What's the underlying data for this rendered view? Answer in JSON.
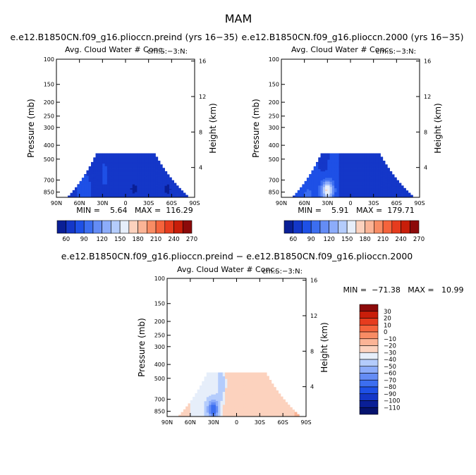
{
  "figure_title": "MAM",
  "chart_data": [
    {
      "type": "heatmap",
      "title": "e.e12.B1850CN.f09_g16.plioccn.preind (yrs 16−35)",
      "subtitle": "Avg. Cloud Water # Conc.",
      "units": "cm:S:−3:N:",
      "ylabel": "Pressure (mb)",
      "ylabel_right": "Height (km)",
      "x_ticks": [
        "90N",
        "60N",
        "30N",
        "0",
        "30S",
        "60S",
        "90S"
      ],
      "y_ticks": [
        "100",
        "150",
        "200",
        "250",
        "300",
        "400",
        "500",
        "700",
        "850"
      ],
      "y_ticks_right": [
        "16",
        "12",
        "8",
        "4"
      ],
      "xlim": [
        90,
        -90
      ],
      "ylim": [
        1000,
        100
      ],
      "y_scale": "log",
      "stats": "MIN =    5.64   MAX =  116.29",
      "min": 5.64,
      "max": 116.29,
      "colorbar_labels": [
        "60",
        "90",
        "120",
        "150",
        "180",
        "210",
        "240",
        "270"
      ]
    },
    {
      "type": "heatmap",
      "title": "e.e12.B1850CN.f09_g16.plioccn.2000 (yrs 16−35)",
      "subtitle": "Avg. Cloud Water # Conc.",
      "units": "cm:S:−3:N:",
      "ylabel": "Pressure (mb)",
      "ylabel_right": "Height (km)",
      "x_ticks": [
        "90N",
        "60N",
        "30N",
        "0",
        "30S",
        "60S",
        "90S"
      ],
      "y_ticks": [
        "100",
        "150",
        "200",
        "250",
        "300",
        "400",
        "500",
        "700",
        "850"
      ],
      "y_ticks_right": [
        "16",
        "12",
        "8",
        "4"
      ],
      "xlim": [
        90,
        -90
      ],
      "ylim": [
        1000,
        100
      ],
      "y_scale": "log",
      "stats": "MIN =    5.91   MAX =  179.71",
      "min": 5.91,
      "max": 179.71,
      "colorbar_labels": [
        "60",
        "90",
        "120",
        "150",
        "180",
        "210",
        "240",
        "270"
      ]
    },
    {
      "type": "heatmap",
      "title": "e.e12.B1850CN.f09_g16.plioccn.preind − e.e12.B1850CN.f09_g16.plioccn.2000",
      "subtitle": "Avg. Cloud Water # Conc.",
      "units": "cm:S:−3:N:",
      "ylabel": "Pressure (mb)",
      "ylabel_right": "Height (km)",
      "x_ticks": [
        "90N",
        "60N",
        "30N",
        "0",
        "30S",
        "60S",
        "90S"
      ],
      "y_ticks": [
        "100",
        "150",
        "200",
        "250",
        "300",
        "400",
        "500",
        "700",
        "850"
      ],
      "y_ticks_right": [
        "16",
        "12",
        "8",
        "4"
      ],
      "xlim": [
        90,
        -90
      ],
      "ylim": [
        1000,
        100
      ],
      "y_scale": "log",
      "stats": "MIN =  −71.38   MAX =   10.99",
      "min": -71.38,
      "max": 10.99,
      "colorbar_labels": [
        "30",
        "20",
        "10",
        "0",
        "−10",
        "−20",
        "−30",
        "−40",
        "−50",
        "−60",
        "−70",
        "−80",
        "−90",
        "−100",
        "−110"
      ]
    }
  ],
  "colors": {
    "abs_scale": [
      "#0a1f96",
      "#1437c8",
      "#1e50e6",
      "#3c6ef0",
      "#648cf5",
      "#8cacfa",
      "#b4ccfc",
      "#e6eefa",
      "#fcd2be",
      "#fbb496",
      "#f88c64",
      "#f5643c",
      "#e63c1e",
      "#c81e0a",
      "#8c0a0a"
    ],
    "diff_scale": [
      "#8c0a0a",
      "#c81e0a",
      "#e63c1e",
      "#f5643c",
      "#f88c64",
      "#fbb496",
      "#fcd2be",
      "#e6eefa",
      "#b4ccfc",
      "#8cacfa",
      "#648cf5",
      "#3c6ef0",
      "#1e50e6",
      "#1437c8",
      "#0a1f96",
      "#06136e"
    ]
  }
}
